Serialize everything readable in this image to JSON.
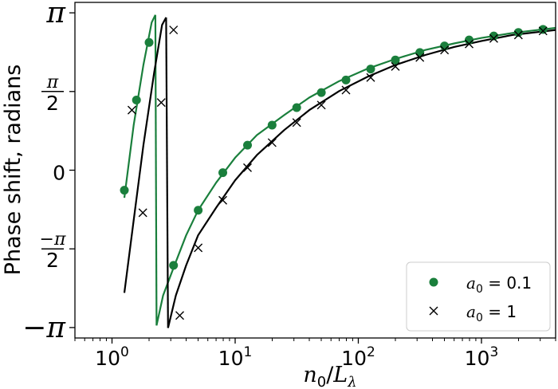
{
  "chart_data": {
    "type": "scatter",
    "xlabel": "n₀/Lλ",
    "ylabel": "Phase shift, radians",
    "xscale": "log",
    "xlim": [
      0.5,
      4000
    ],
    "ylim": [
      -3.35,
      3.35
    ],
    "x_ticks": [
      {
        "value": 1,
        "base": "10",
        "exp": "0"
      },
      {
        "value": 10,
        "base": "10",
        "exp": "1"
      },
      {
        "value": 100,
        "base": "10",
        "exp": "2"
      },
      {
        "value": 1000,
        "base": "10",
        "exp": "3"
      }
    ],
    "y_ticks": [
      {
        "value": 3.14159,
        "label": "π"
      },
      {
        "value": 1.5708,
        "num": "π",
        "den": "2"
      },
      {
        "value": 0,
        "label": "0"
      },
      {
        "value": -1.5708,
        "num": "−π",
        "den": "2"
      },
      {
        "value": -3.14159,
        "label": "−π"
      }
    ],
    "grid": false,
    "legend_position": "bottom-right",
    "series": [
      {
        "name": "a₀ = 0.1",
        "legend_math": {
          "var": "a",
          "sub": "0",
          "rest": " = 0.1"
        },
        "color": "#1a7f3c",
        "marker": "circle",
        "points": [
          [
            1.26,
            -0.4
          ],
          [
            1.58,
            1.4
          ],
          [
            2.0,
            2.55
          ],
          [
            3.16,
            -1.9
          ],
          [
            5.01,
            -0.8
          ],
          [
            7.94,
            -0.05
          ],
          [
            12.6,
            0.5
          ],
          [
            19.95,
            0.9
          ],
          [
            31.6,
            1.25
          ],
          [
            50.1,
            1.55
          ],
          [
            79.4,
            1.8
          ],
          [
            126,
            2.02
          ],
          [
            200,
            2.2
          ],
          [
            316,
            2.35
          ],
          [
            501,
            2.48
          ],
          [
            794,
            2.6
          ],
          [
            1259,
            2.68
          ],
          [
            1995,
            2.75
          ],
          [
            3162,
            2.81
          ]
        ],
        "curve": [
          [
            [
              1.26,
              -0.55
            ],
            [
              1.5,
              0.9
            ],
            [
              1.8,
              2.1
            ],
            [
              2.1,
              2.95
            ],
            [
              2.25,
              3.1
            ]
          ],
          [
            [
              2.25,
              3.1
            ],
            [
              2.3,
              -3.1
            ]
          ],
          [
            [
              2.3,
              -3.1
            ],
            [
              2.6,
              -2.5
            ],
            [
              3.16,
              -1.95
            ],
            [
              4.0,
              -1.3
            ],
            [
              5.0,
              -0.8
            ],
            [
              7.0,
              -0.25
            ],
            [
              10,
              0.25
            ],
            [
              15,
              0.7
            ],
            [
              25,
              1.1
            ],
            [
              40,
              1.45
            ],
            [
              70,
              1.78
            ],
            [
              120,
              2.03
            ],
            [
              200,
              2.22
            ],
            [
              350,
              2.4
            ],
            [
              600,
              2.53
            ],
            [
              1000,
              2.64
            ],
            [
              1800,
              2.74
            ],
            [
              4000,
              2.84
            ]
          ]
        ]
      },
      {
        "name": "a₀ = 1",
        "legend_math": {
          "var": "a",
          "sub": "0",
          "rest": " = 1"
        },
        "color": "#000000",
        "marker": "x",
        "points": [
          [
            1.45,
            1.2
          ],
          [
            1.78,
            -0.85
          ],
          [
            2.51,
            1.35
          ],
          [
            3.16,
            2.8
          ],
          [
            3.55,
            -2.9
          ],
          [
            5.01,
            -1.55
          ],
          [
            7.94,
            -0.6
          ],
          [
            12.6,
            0.05
          ],
          [
            19.95,
            0.55
          ],
          [
            31.6,
            0.95
          ],
          [
            50.1,
            1.3
          ],
          [
            79.4,
            1.6
          ],
          [
            126,
            1.85
          ],
          [
            200,
            2.07
          ],
          [
            316,
            2.25
          ],
          [
            501,
            2.4
          ],
          [
            794,
            2.52
          ],
          [
            1259,
            2.63
          ],
          [
            1995,
            2.7
          ],
          [
            3162,
            2.78
          ]
        ],
        "curve": [
          [
            [
              1.26,
              -2.45
            ],
            [
              1.5,
              -1.0
            ],
            [
              1.8,
              0.5
            ],
            [
              2.2,
              1.95
            ],
            [
              2.55,
              2.9
            ],
            [
              2.75,
              3.05
            ]
          ],
          [
            [
              2.75,
              3.05
            ],
            [
              2.85,
              -3.15
            ]
          ],
          [
            [
              2.85,
              -3.15
            ],
            [
              3.3,
              -2.5
            ],
            [
              4.0,
              -1.9
            ],
            [
              5.0,
              -1.3
            ],
            [
              7.0,
              -0.75
            ],
            [
              10,
              -0.2
            ],
            [
              15,
              0.3
            ],
            [
              25,
              0.8
            ],
            [
              40,
              1.2
            ],
            [
              70,
              1.58
            ],
            [
              120,
              1.87
            ],
            [
              200,
              2.1
            ],
            [
              350,
              2.3
            ],
            [
              600,
              2.46
            ],
            [
              1000,
              2.58
            ],
            [
              1800,
              2.7
            ],
            [
              4000,
              2.8
            ]
          ]
        ]
      }
    ]
  }
}
